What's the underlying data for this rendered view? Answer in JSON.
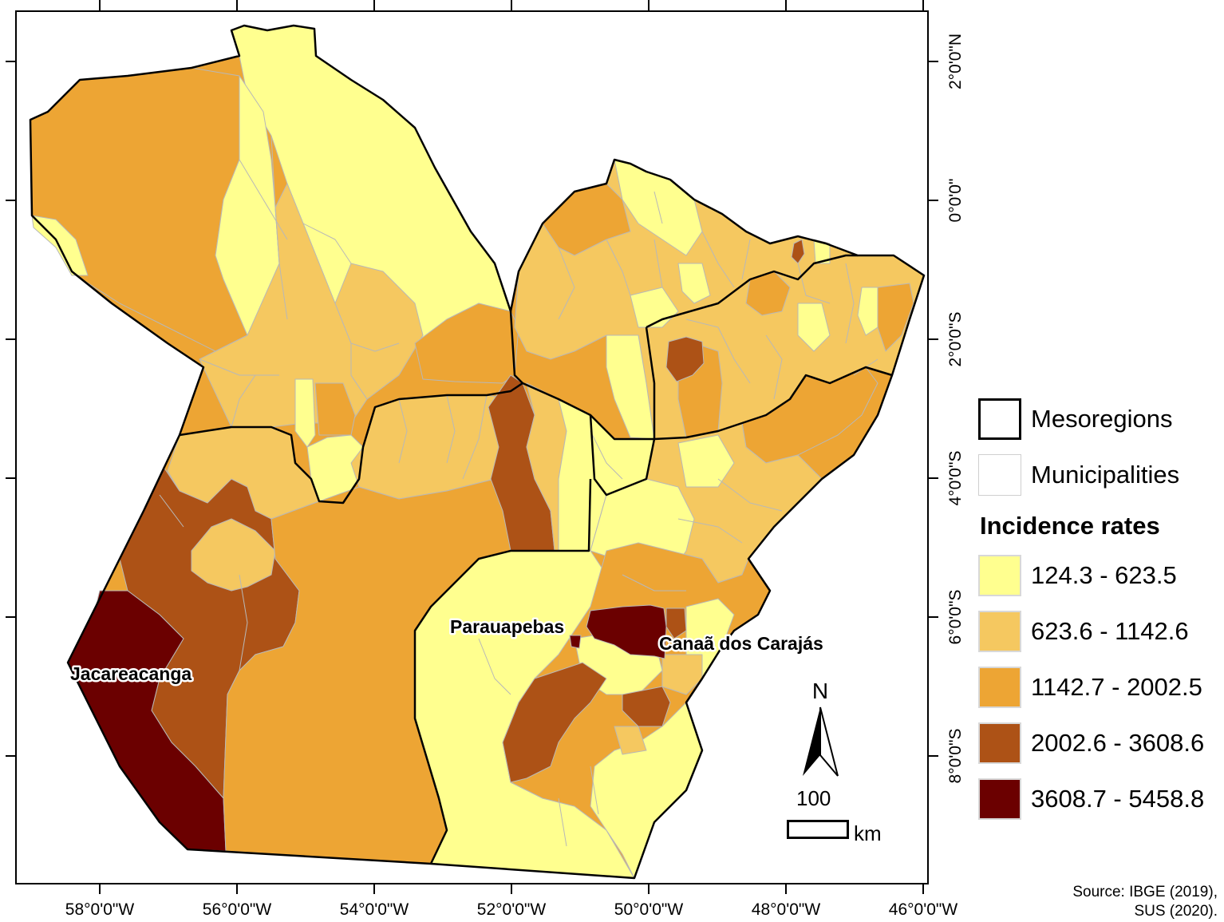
{
  "colors": {
    "class1": "#ffff8f",
    "class2": "#f5c860",
    "class3": "#eda534",
    "class4": "#ad5216",
    "class5": "#6b0000",
    "frame": "#000000",
    "municipality_line": "#b8b8b8"
  },
  "axes": {
    "longitude_ticks": [
      "58°0'0\"W",
      "56°0'0\"W",
      "54°0'0\"W",
      "52°0'0\"W",
      "50°0'0\"W",
      "48°0'0\"W",
      "46°0'0\"W"
    ],
    "latitude_ticks": [
      "2°0'0\"N",
      "0°0'0\"",
      "2°0'0\"S",
      "4°0'0\"S",
      "6°0'0\"S",
      "8°0'0\"S"
    ]
  },
  "places": {
    "parauapebas": "Parauapebas",
    "canaa": "Canaã dos Carajás",
    "jacareacanga": "Jacareacanga"
  },
  "legend": {
    "mesoregions": "Mesoregions",
    "municipalities": "Municipalities",
    "title": "Incidence rates",
    "classes": [
      {
        "label": "124.3 - 623.5",
        "color": "#ffff8f"
      },
      {
        "label": "623.6 - 1142.6",
        "color": "#f5c860"
      },
      {
        "label": "1142.7 - 2002.5",
        "color": "#eda534"
      },
      {
        "label": "2002.6 - 3608.6",
        "color": "#ad5216"
      },
      {
        "label": "3608.7 - 5458.8",
        "color": "#6b0000"
      }
    ]
  },
  "north_arrow": {
    "letter": "N"
  },
  "scale_bar": {
    "value": "100",
    "unit": "km"
  },
  "source": {
    "line1": "Source: IBGE (2019),",
    "line2": "SUS (2020)."
  }
}
